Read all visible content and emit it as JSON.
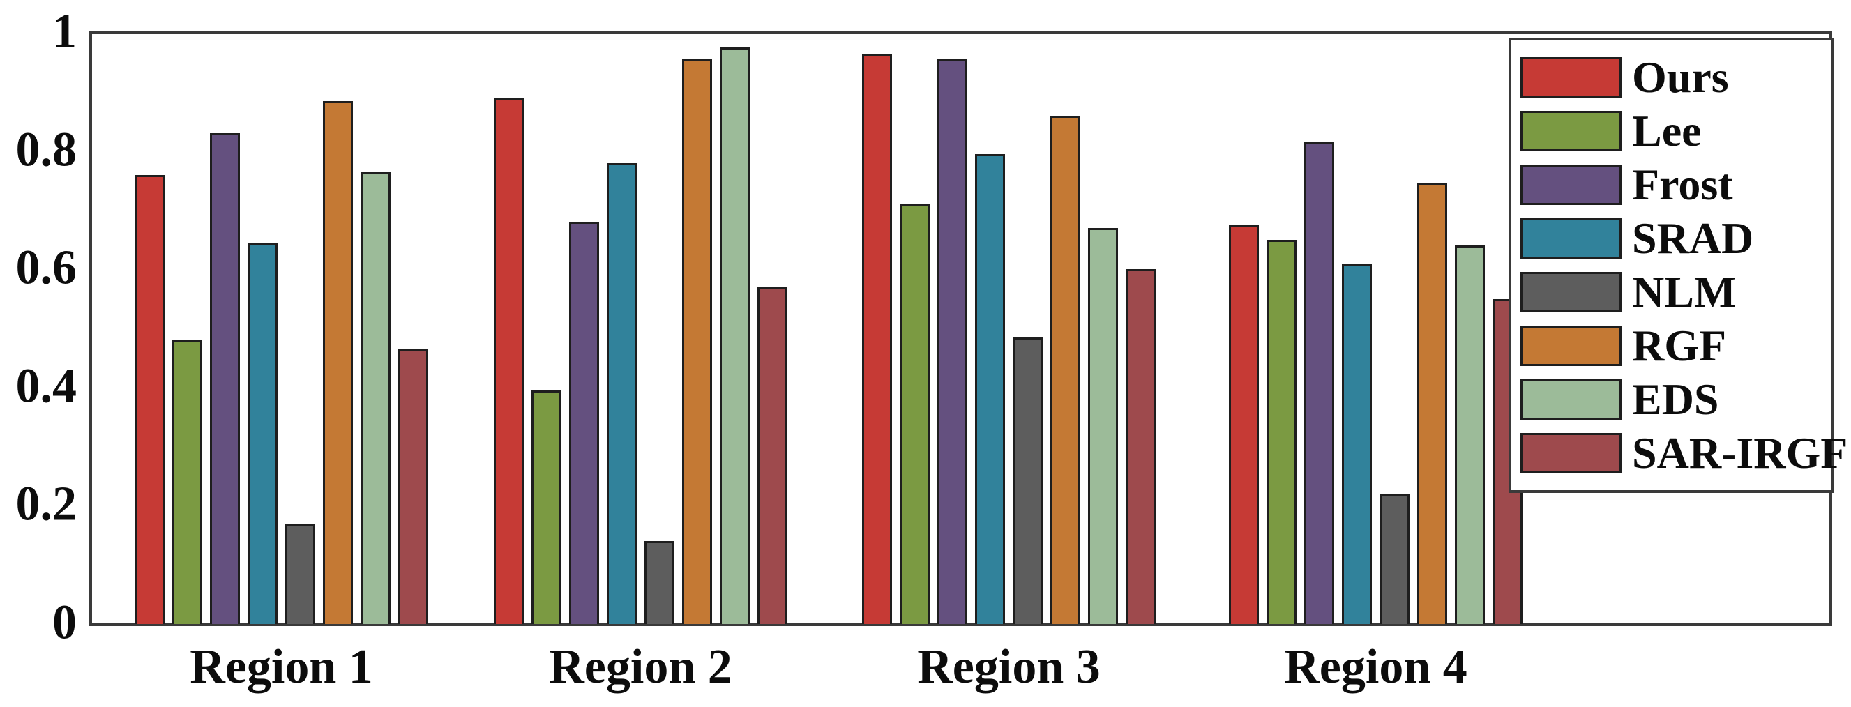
{
  "chart_data": {
    "type": "bar",
    "title": "",
    "xlabel": "",
    "ylabel": "",
    "categories": [
      "Region 1",
      "Region 2",
      "Region 3",
      "Region 4"
    ],
    "series": [
      {
        "name": "Ours",
        "color": "#c63a35",
        "values": [
          0.76,
          0.89,
          0.965,
          0.675
        ]
      },
      {
        "name": "Lee",
        "color": "#7b9a42",
        "values": [
          0.48,
          0.395,
          0.71,
          0.65
        ]
      },
      {
        "name": "Frost",
        "color": "#64507f",
        "values": [
          0.83,
          0.68,
          0.955,
          0.815
        ]
      },
      {
        "name": "SRAD",
        "color": "#31829b",
        "values": [
          0.645,
          0.78,
          0.795,
          0.61
        ]
      },
      {
        "name": "NLM",
        "color": "#5d5d5d",
        "values": [
          0.17,
          0.14,
          0.485,
          0.22
        ]
      },
      {
        "name": "RGF",
        "color": "#c47934",
        "values": [
          0.885,
          0.955,
          0.86,
          0.745
        ]
      },
      {
        "name": "EDS",
        "color": "#9cbb99",
        "values": [
          0.765,
          0.975,
          0.67,
          0.64
        ]
      },
      {
        "name": "SAR-IRGF",
        "color": "#9e4a4d",
        "values": [
          0.465,
          0.57,
          0.6,
          0.55
        ]
      }
    ],
    "ylim": [
      0,
      1
    ],
    "ytick_labels": [
      "0",
      "0.2",
      "0.4",
      "0.6",
      "0.8",
      "1"
    ],
    "ytick_values": [
      0,
      0.2,
      0.4,
      0.6,
      0.8,
      1
    ],
    "grid": false,
    "legend_position": "top-right"
  }
}
